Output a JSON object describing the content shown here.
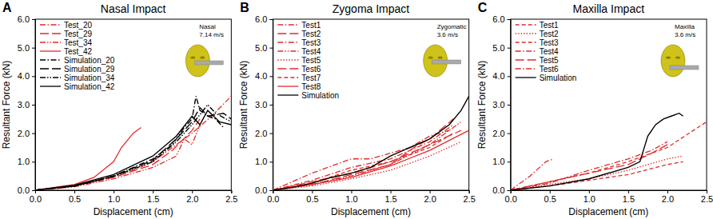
{
  "chart_data": [
    {
      "type": "line",
      "title": "Nasal Impact",
      "annotations": [
        "A",
        "Nasal",
        "7.14 m/s"
      ],
      "x_label": "Displacement (cm)",
      "y_label": "Resultant Force (kN)",
      "xlim": [
        0,
        2.5
      ],
      "ylim": [
        0,
        6
      ],
      "xticks": [
        {
          "value": 0,
          "label": "0.0"
        },
        {
          "value": 0.5,
          "label": "0.5"
        },
        {
          "value": 1,
          "label": "1.0"
        },
        {
          "value": 1.5,
          "label": "1.5"
        },
        {
          "value": 2,
          "label": "2.0"
        },
        {
          "value": 2.5,
          "label": "2.5"
        }
      ],
      "yticks": [
        {
          "value": 0,
          "label": "0.0"
        },
        {
          "value": 1,
          "label": "1.0"
        },
        {
          "value": 2,
          "label": "2.0"
        },
        {
          "value": 3,
          "label": "3.0"
        },
        {
          "value": 4,
          "label": "4.0"
        },
        {
          "value": 5,
          "label": "5.0"
        },
        {
          "value": 6,
          "label": "6.0"
        }
      ],
      "grid": false,
      "legend": "upper left",
      "series": [
        {
          "name": "Test_20",
          "color": "#e02b2b",
          "line_style": "dashdot",
          "x": [
            0,
            0.25,
            0.5,
            0.75,
            1.0,
            1.25,
            1.5,
            1.75,
            2.0,
            2.25,
            2.5
          ],
          "values": [
            0,
            0.05,
            0.15,
            0.3,
            0.5,
            0.7,
            1.0,
            1.5,
            2.0,
            2.6,
            3.3
          ]
        },
        {
          "name": "Test_29",
          "color": "#e02b2b",
          "line_style": "longdash",
          "x": [
            0,
            0.5,
            1.0,
            1.5,
            1.75,
            2.0,
            2.1
          ],
          "values": [
            0,
            0.15,
            0.45,
            0.9,
            1.4,
            2.1,
            2.5
          ]
        },
        {
          "name": "Test_34",
          "color": "#e02b2b",
          "line_style": "dashdotdot",
          "x": [
            0,
            0.5,
            1.0,
            1.5,
            1.8,
            1.9,
            2.0,
            2.1
          ],
          "values": [
            0,
            0.12,
            0.4,
            0.8,
            1.2,
            1.8,
            1.6,
            2.3
          ]
        },
        {
          "name": "Test_42",
          "color": "#e02b2b",
          "line_style": "solid",
          "x": [
            0,
            0.5,
            0.75,
            1.0,
            1.1,
            1.25,
            1.35
          ],
          "values": [
            0,
            0.2,
            0.45,
            1.0,
            1.5,
            2.0,
            2.2
          ]
        },
        {
          "name": "Simulation_20",
          "color": "#000000",
          "line_style": "dashdot",
          "x": [
            0,
            0.5,
            1.0,
            1.5,
            1.75,
            1.9,
            2.0,
            2.05,
            2.1,
            2.2,
            2.3,
            2.4
          ],
          "values": [
            0,
            0.15,
            0.5,
            1.1,
            1.6,
            2.2,
            2.5,
            3.3,
            2.8,
            2.6,
            2.5,
            2.2
          ]
        },
        {
          "name": "Simulation_29",
          "color": "#000000",
          "line_style": "longdash",
          "x": [
            0,
            0.5,
            1.0,
            1.5,
            1.8,
            2.0,
            2.1,
            2.2,
            2.4,
            2.5
          ],
          "values": [
            0,
            0.15,
            0.5,
            1.05,
            1.8,
            2.4,
            2.9,
            2.6,
            2.7,
            2.5
          ]
        },
        {
          "name": "Simulation_34",
          "color": "#000000",
          "line_style": "dashdotdot",
          "x": [
            0,
            0.5,
            1.0,
            1.5,
            1.8,
            2.0,
            2.2,
            2.3,
            2.5
          ],
          "values": [
            0,
            0.14,
            0.48,
            1.0,
            1.7,
            2.3,
            3.0,
            2.7,
            2.4
          ]
        },
        {
          "name": "Simulation_42",
          "color": "#000000",
          "line_style": "solid",
          "x": [
            0,
            0.5,
            1.0,
            1.5,
            1.8,
            2.0,
            2.1,
            2.2,
            2.35,
            2.5
          ],
          "values": [
            0,
            0.18,
            0.55,
            1.2,
            1.9,
            2.6,
            2.3,
            2.8,
            2.4,
            2.3
          ]
        }
      ]
    },
    {
      "type": "line",
      "title": "Zygoma Impact",
      "annotations": [
        "B",
        "Zygomatic",
        "3.6 m/s"
      ],
      "x_label": "Displacement (cm)",
      "y_label": "Resultant Force (kN)",
      "xlim": [
        0,
        2.5
      ],
      "ylim": [
        0,
        6
      ],
      "xticks": [
        {
          "value": 0,
          "label": "0.0"
        },
        {
          "value": 0.5,
          "label": "0.5"
        },
        {
          "value": 1,
          "label": "1.0"
        },
        {
          "value": 1.5,
          "label": "1.5"
        },
        {
          "value": 2,
          "label": "2.0"
        },
        {
          "value": 2.5,
          "label": "2.5"
        }
      ],
      "yticks": [
        {
          "value": 0,
          "label": "0.0"
        },
        {
          "value": 1,
          "label": "1.0"
        },
        {
          "value": 2,
          "label": "2.0"
        },
        {
          "value": 3,
          "label": "3.0"
        },
        {
          "value": 4,
          "label": "4.0"
        },
        {
          "value": 5,
          "label": "5.0"
        },
        {
          "value": 6,
          "label": "6.0"
        }
      ],
      "grid": false,
      "legend": "upper left",
      "series": [
        {
          "name": "Test1",
          "color": "#e02b2b",
          "line_style": "dashdot",
          "x": [
            0,
            0.25,
            0.5,
            0.75,
            1.0,
            1.25,
            1.5,
            1.75,
            2.0,
            2.25
          ],
          "values": [
            0,
            0.3,
            0.6,
            0.85,
            1.1,
            1.1,
            1.3,
            1.5,
            1.9,
            2.1
          ]
        },
        {
          "name": "Test2",
          "color": "#e02b2b",
          "line_style": "longdash",
          "x": [
            0,
            0.5,
            1.0,
            1.5,
            2.0,
            2.4
          ],
          "values": [
            0,
            0.3,
            0.6,
            1.0,
            1.6,
            2.1
          ]
        },
        {
          "name": "Test3",
          "color": "#e02b2b",
          "line_style": "dashdot",
          "x": [
            0,
            0.5,
            1.0,
            1.5,
            2.0,
            2.3
          ],
          "values": [
            0,
            0.35,
            0.8,
            1.1,
            1.7,
            2.3
          ]
        },
        {
          "name": "Test4",
          "color": "#e02b2b",
          "line_style": "dashdotdot",
          "x": [
            0,
            0.5,
            1.0,
            1.5,
            2.0,
            2.4
          ],
          "values": [
            0,
            0.2,
            0.5,
            0.9,
            1.6,
            2.4
          ]
        },
        {
          "name": "Test5",
          "color": "#e02b2b",
          "line_style": "dotted",
          "x": [
            0,
            0.5,
            1.0,
            1.5,
            2.0,
            2.4
          ],
          "values": [
            0,
            0.15,
            0.4,
            0.7,
            1.2,
            1.7
          ]
        },
        {
          "name": "Test6",
          "color": "#e02b2b",
          "line_style": "longdash",
          "x": [
            0,
            0.5,
            1.0,
            1.5,
            1.8,
            2.0,
            2.3
          ],
          "values": [
            0,
            0.2,
            0.55,
            0.9,
            1.5,
            1.8,
            2.5
          ]
        },
        {
          "name": "Test7",
          "color": "#e02b2b",
          "line_style": "dashed",
          "x": [
            0,
            0.5,
            1.0,
            1.5,
            2.0,
            2.3
          ],
          "values": [
            0,
            0.25,
            0.7,
            1.0,
            1.5,
            2.0
          ]
        },
        {
          "name": "Test8",
          "color": "#e02b2b",
          "line_style": "solid",
          "x": [
            0,
            0.5,
            1.0,
            1.5,
            2.0,
            2.5
          ],
          "values": [
            0,
            0.2,
            0.45,
            0.85,
            1.4,
            2.1
          ]
        },
        {
          "name": "Simulation",
          "color": "#000000",
          "line_style": "solid",
          "x": [
            0,
            0.25,
            0.5,
            0.75,
            1.0,
            1.25,
            1.5,
            1.75,
            2.0,
            2.25,
            2.4,
            2.5
          ],
          "values": [
            0,
            0.1,
            0.25,
            0.45,
            0.6,
            0.8,
            1.2,
            1.5,
            1.8,
            2.3,
            2.8,
            3.3
          ]
        }
      ]
    },
    {
      "type": "line",
      "title": "Maxilla Impact",
      "annotations": [
        "C",
        "Maxilla",
        "3.6 m/s"
      ],
      "x_label": "Displacement (cm)",
      "y_label": "Resultant Force (kN)",
      "xlim": [
        0,
        2.5
      ],
      "ylim": [
        0,
        6
      ],
      "xticks": [
        {
          "value": 0,
          "label": "0.0"
        },
        {
          "value": 0.5,
          "label": "0.5"
        },
        {
          "value": 1,
          "label": "1.0"
        },
        {
          "value": 1.5,
          "label": "1.5"
        },
        {
          "value": 2,
          "label": "2.0"
        },
        {
          "value": 2.5,
          "label": "2.5"
        }
      ],
      "yticks": [
        {
          "value": 0,
          "label": "0.0"
        },
        {
          "value": 1,
          "label": "1.0"
        },
        {
          "value": 2,
          "label": "2.0"
        },
        {
          "value": 3,
          "label": "3.0"
        },
        {
          "value": 4,
          "label": "4.0"
        },
        {
          "value": 5,
          "label": "5.0"
        },
        {
          "value": 6,
          "label": "6.0"
        }
      ],
      "grid": false,
      "legend": "upper left",
      "series": [
        {
          "name": "Test1",
          "color": "#e02b2b",
          "line_style": "dashed",
          "x": [
            0,
            0.5,
            1.0,
            1.5,
            2.0,
            2.2
          ],
          "values": [
            0,
            0.15,
            0.35,
            0.55,
            0.9,
            1.0
          ]
        },
        {
          "name": "Test2",
          "color": "#e02b2b",
          "line_style": "dotted",
          "x": [
            0,
            0.5,
            1.0,
            1.5,
            2.0,
            2.2
          ],
          "values": [
            0,
            0.2,
            0.4,
            0.7,
            1.1,
            1.2
          ]
        },
        {
          "name": "Test3",
          "color": "#e02b2b",
          "line_style": "dashed",
          "x": [
            0,
            0.5,
            1.0,
            1.5,
            2.0,
            2.5
          ],
          "values": [
            0,
            0.3,
            0.6,
            1.0,
            1.5,
            2.4
          ]
        },
        {
          "name": "Test4",
          "color": "#e02b2b",
          "line_style": "dashdot",
          "x": [
            0,
            0.25,
            0.45,
            0.55
          ],
          "values": [
            0,
            0.5,
            1.0,
            1.1
          ]
        },
        {
          "name": "Test5",
          "color": "#e02b2b",
          "line_style": "longdash",
          "x": [
            0,
            0.5,
            1.0,
            1.5,
            1.8,
            2.0
          ],
          "values": [
            0,
            0.3,
            0.6,
            0.9,
            1.3,
            1.6
          ]
        },
        {
          "name": "Test6",
          "color": "#e02b2b",
          "line_style": "dashdot",
          "x": [
            0,
            0.5,
            1.0,
            1.5,
            1.8,
            2.0
          ],
          "values": [
            0,
            0.25,
            0.7,
            1.1,
            1.4,
            1.7
          ]
        },
        {
          "name": "Simulation",
          "color": "#000000",
          "line_style": "solid",
          "x": [
            0,
            0.5,
            1.0,
            1.5,
            1.65,
            1.75,
            1.85,
            1.95,
            2.05,
            2.15,
            2.2
          ],
          "values": [
            0,
            0.15,
            0.4,
            0.8,
            1.0,
            1.9,
            2.3,
            2.5,
            2.6,
            2.7,
            2.6
          ]
        }
      ]
    }
  ]
}
